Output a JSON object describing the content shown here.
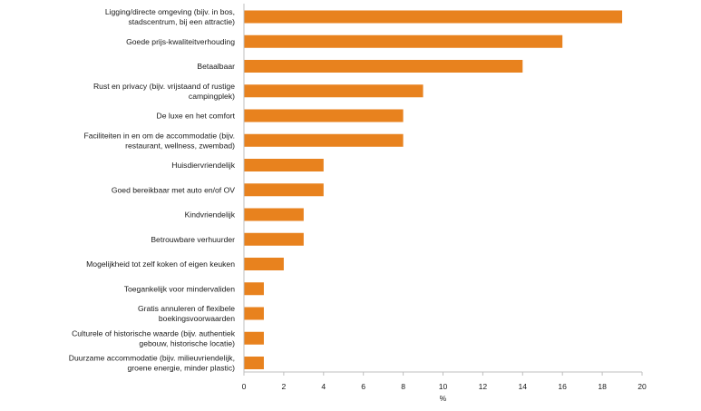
{
  "chart_data": {
    "type": "bar",
    "orientation": "horizontal",
    "categories": [
      [
        "Ligging/directe omgeving (bijv. in bos,",
        "stadscentrum, bij een attractie)"
      ],
      [
        "Goede prijs-kwaliteitverhouding"
      ],
      [
        "Betaalbaar"
      ],
      [
        "Rust en privacy (bijv. vrijstaand of rustige",
        "campingplek)"
      ],
      [
        "De luxe en het comfort"
      ],
      [
        "Faciliteiten in en om de accommodatie (bijv.",
        "restaurant, wellness, zwembad)"
      ],
      [
        "Huisdiervriendelijk"
      ],
      [
        "Goed bereikbaar met auto en/of OV"
      ],
      [
        "Kindvriendelijk"
      ],
      [
        "Betrouwbare verhuurder"
      ],
      [
        "Mogelijkheid tot zelf koken of eigen keuken"
      ],
      [
        "Toegankelijk voor mindervaliden"
      ],
      [
        "Gratis annuleren of flexibele",
        "boekingsvoorwaarden"
      ],
      [
        "Culturele of historische waarde (bijv. authentiek",
        "gebouw, historische locatie)"
      ],
      [
        "Duurzame accommodatie (bijv. milieuvriendelijk,",
        "groene energie, minder plastic)"
      ]
    ],
    "values": [
      19,
      16,
      14,
      9,
      8,
      8,
      4,
      4,
      3,
      3,
      2,
      1,
      1,
      1,
      1
    ],
    "xlabel": "%",
    "xlim": [
      0,
      20
    ],
    "xticks": [
      0,
      2,
      4,
      6,
      8,
      10,
      12,
      14,
      16,
      18,
      20
    ],
    "grid": false,
    "bar_color": "#e8821e",
    "axis_color": "#bfbfbf"
  }
}
